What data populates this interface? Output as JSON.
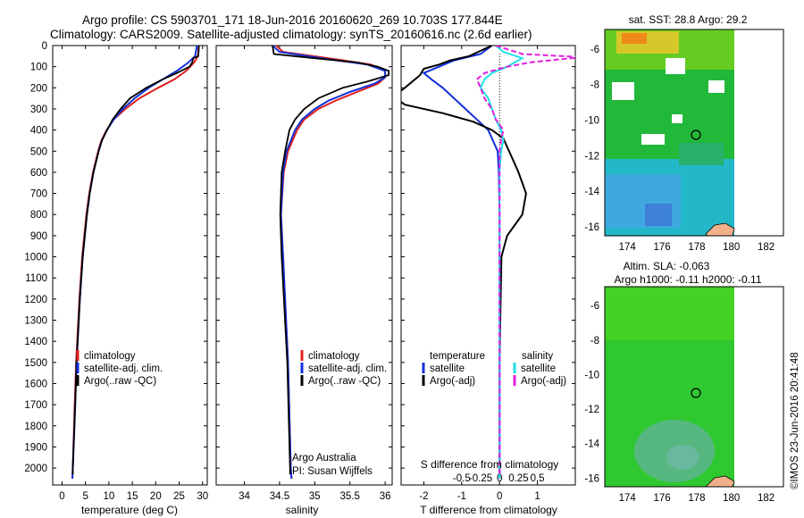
{
  "header": {
    "line1": "Argo profile: CS 5903701_171 18-Jun-2016 20160620_269 10.703S 177.844E",
    "line2": "Climatology: CARS2009. Satellite-adjusted climatology: synTS_20160616.nc (2.6d earlier)"
  },
  "colors": {
    "climatology": "#e0201e",
    "satellite": "#1030d8",
    "argo": "#000000",
    "sat_salinity": "#20e0e8",
    "argo_salinity_adj": "#e020e0"
  },
  "panel_temp": {
    "xlabel": "temperature (deg C)",
    "legend": [
      "climatology",
      "satellite-adj. clim.",
      "Argo(..raw -QC)"
    ]
  },
  "panel_sal": {
    "xlabel": "salinity",
    "legend": [
      "climatology",
      "satellite-adj. clim.",
      "Argo(..raw -QC)"
    ],
    "credit1": "Argo Australia",
    "credit2": "PI: Susan Wijffels"
  },
  "panel_diff": {
    "xlabel": "T difference from climatology",
    "top_axis_label": "S difference from climatology",
    "legend_temp_title": "temperature",
    "legend_sal_title": "salinity",
    "legend_temp": [
      "satellite",
      "Argo(-adj)"
    ],
    "legend_sal": [
      "satellite",
      "Argo(-adj)"
    ]
  },
  "map_sst": {
    "title": "sat. SST: 28.8 Argo: 29.2",
    "x_ticks": [
      "174",
      "176",
      "178",
      "180",
      "182"
    ],
    "y_ticks": [
      "-6",
      "-8",
      "-10",
      "-12",
      "-14",
      "-16"
    ]
  },
  "map_sla": {
    "title1": "Altim. SLA: -0.063",
    "title2": "Argo h1000: -0.11 h2000: -0.11",
    "x_ticks": [
      "174",
      "176",
      "178",
      "180",
      "182"
    ],
    "y_ticks": [
      "-6",
      "-8",
      "-10",
      "-12",
      "-14",
      "-16"
    ]
  },
  "credit_vertical": "©IMOS 23-Jun-2016 20:41:48",
  "chart_data": [
    {
      "type": "line",
      "xlabel": "temperature (deg C)",
      "xlim": [
        -2,
        31
      ],
      "x_ticks": [
        0,
        5,
        10,
        15,
        20,
        25,
        30
      ],
      "ylim": [
        2080,
        0
      ],
      "y_ticks": [
        0,
        100,
        200,
        300,
        400,
        500,
        600,
        700,
        800,
        900,
        1000,
        1100,
        1200,
        1300,
        1400,
        1500,
        1600,
        1700,
        1800,
        1900,
        2000
      ],
      "series": [
        {
          "name": "climatology",
          "depth": [
            0,
            50,
            80,
            120,
            160,
            200,
            250,
            300,
            350,
            400,
            450,
            500,
            600,
            700,
            800,
            1000,
            1200,
            1500,
            1700,
            2000,
            2050
          ],
          "values": [
            29.2,
            29.0,
            28.2,
            26.5,
            24.0,
            20.5,
            16.5,
            13.5,
            11.0,
            9.5,
            8.4,
            7.7,
            6.6,
            5.8,
            5.2,
            4.3,
            3.7,
            3.0,
            2.7,
            2.3,
            2.2
          ]
        },
        {
          "name": "satellite-adj. clim.",
          "depth": [
            0,
            50,
            80,
            120,
            160,
            200,
            250,
            300,
            350,
            400,
            450,
            500,
            600,
            700,
            800,
            1000,
            1200,
            1500,
            1700,
            2000,
            2050
          ],
          "values": [
            28.8,
            28.4,
            27.0,
            24.5,
            21.5,
            18.5,
            15.5,
            13.0,
            11.0,
            9.6,
            8.5,
            7.8,
            6.7,
            5.9,
            5.3,
            4.4,
            3.8,
            3.1,
            2.8,
            2.3,
            2.2
          ]
        },
        {
          "name": "Argo(..raw -QC)",
          "depth": [
            0,
            5,
            50,
            60,
            80,
            100,
            130,
            160,
            200,
            250,
            300,
            350,
            400,
            450,
            500,
            600,
            700,
            800,
            1000,
            1200,
            1500,
            1700,
            2000,
            2030
          ],
          "values": [
            29.2,
            29.2,
            29.1,
            28.0,
            27.8,
            27.2,
            24.5,
            21.5,
            18.0,
            14.5,
            12.5,
            10.8,
            9.6,
            8.5,
            7.8,
            6.7,
            5.9,
            5.3,
            4.4,
            3.8,
            3.1,
            2.8,
            2.3,
            2.3
          ]
        }
      ]
    },
    {
      "type": "line",
      "xlabel": "salinity",
      "xlim": [
        33.6,
        36.1
      ],
      "x_ticks": [
        34,
        34.5,
        35,
        35.5,
        36
      ],
      "ylim": [
        2080,
        0
      ],
      "series": [
        {
          "name": "climatology",
          "depth": [
            0,
            30,
            60,
            90,
            120,
            150,
            180,
            220,
            260,
            300,
            350,
            400,
            500,
            600,
            800,
            1000,
            1500,
            2000,
            2050
          ],
          "values": [
            34.45,
            34.55,
            35.2,
            35.8,
            36.0,
            36.0,
            35.9,
            35.6,
            35.3,
            35.05,
            34.85,
            34.75,
            34.62,
            34.56,
            34.52,
            34.55,
            34.62,
            34.66,
            34.67
          ]
        },
        {
          "name": "satellite-adj. clim.",
          "depth": [
            0,
            30,
            60,
            90,
            120,
            150,
            180,
            220,
            260,
            300,
            350,
            400,
            500,
            600,
            800,
            1000,
            1500,
            2000,
            2050
          ],
          "values": [
            34.4,
            34.5,
            35.1,
            35.75,
            36.0,
            36.0,
            35.85,
            35.5,
            35.2,
            35.0,
            34.82,
            34.72,
            34.6,
            34.55,
            34.52,
            34.55,
            34.62,
            34.66,
            34.67
          ]
        },
        {
          "name": "Argo(..raw -QC)",
          "depth": [
            0,
            40,
            60,
            80,
            100,
            120,
            140,
            170,
            200,
            250,
            300,
            350,
            400,
            500,
            600,
            800,
            1000,
            1500,
            2000,
            2030
          ],
          "values": [
            34.4,
            34.42,
            35.0,
            35.6,
            35.9,
            36.05,
            36.05,
            35.75,
            35.4,
            35.05,
            34.85,
            34.72,
            34.64,
            34.58,
            34.53,
            34.51,
            34.53,
            34.61,
            34.65,
            34.65
          ]
        }
      ]
    },
    {
      "type": "line",
      "xlabel": "T difference from climatology",
      "xlim": [
        -2.6,
        2.0
      ],
      "x_ticks": [
        -2,
        -1,
        0,
        1
      ],
      "top_axis_label": "S difference from climatology",
      "top_ticks": [
        "-0.5",
        "-0.25",
        "0",
        "0.25",
        "0.5"
      ],
      "ylim": [
        2080,
        0
      ],
      "series": [
        {
          "name": "temperature satellite",
          "depth": [
            0,
            40,
            70,
            100,
            130,
            160,
            200,
            250,
            300,
            350,
            400,
            500,
            600,
            800,
            1000,
            1500,
            2000,
            2050
          ],
          "values": [
            -0.2,
            -0.5,
            -1.2,
            -1.6,
            -2.0,
            -1.8,
            -1.5,
            -1.2,
            -0.9,
            -0.6,
            -0.3,
            -0.05,
            -0.02,
            0,
            0,
            0,
            0,
            0
          ]
        },
        {
          "name": "temperature Argo(-adj)",
          "depth": [
            0,
            50,
            70,
            90,
            110,
            140,
            170,
            200,
            240,
            280,
            320,
            360,
            400,
            440,
            480,
            540,
            600,
            700,
            800,
            900,
            1000,
            1500,
            2000,
            2030
          ],
          "values": [
            -0.2,
            -0.8,
            -1.3,
            -1.6,
            -2.0,
            -2.1,
            -2.3,
            -2.5,
            -2.8,
            -2.5,
            -1.5,
            -0.7,
            -0.2,
            0.1,
            0.2,
            0.35,
            0.5,
            0.7,
            0.6,
            0.2,
            0.05,
            0,
            0,
            0
          ]
        },
        {
          "name": "salinity satellite",
          "depth": [
            0,
            30,
            60,
            80,
            100,
            130,
            160,
            200,
            250,
            300,
            350,
            400,
            450,
            500,
            600,
            800,
            1000,
            1500,
            2000,
            2050
          ],
          "values": [
            -0.05,
            0.05,
            0.3,
            0.2,
            0.1,
            -0.1,
            -0.2,
            -0.25,
            -0.15,
            -0.1,
            -0.05,
            0.02,
            0.05,
            0.02,
            0.0,
            0.0,
            0.0,
            0.0,
            0.0,
            0.0
          ]
        },
        {
          "name": "salinity Argo(-adj)",
          "depth": [
            0,
            40,
            55,
            65,
            80,
            100,
            130,
            160,
            200,
            250,
            300,
            350,
            400,
            450,
            500,
            600,
            800,
            1000,
            1500,
            2000,
            2030
          ],
          "values": [
            -0.05,
            0.3,
            1.1,
            0.8,
            0.4,
            0.1,
            -0.2,
            -0.3,
            -0.25,
            -0.2,
            -0.1,
            -0.05,
            0.05,
            0.02,
            0.0,
            0.0,
            0.0,
            0.0,
            0.0,
            0.0,
            0.0
          ]
        }
      ]
    },
    {
      "type": "heatmap",
      "title": "sat. SST: 28.8 Argo: 29.2",
      "xlim": [
        172.7,
        183
      ],
      "ylim": [
        -16.5,
        -4.9
      ],
      "profile_location": {
        "lon": 177.844,
        "lat": -10.703
      }
    },
    {
      "type": "heatmap",
      "title": "Altim. SLA: -0.063",
      "subtitle": "Argo h1000: -0.11 h2000: -0.11",
      "xlim": [
        172.7,
        183
      ],
      "ylim": [
        -16.5,
        -4.9
      ],
      "profile_location": {
        "lon": 177.844,
        "lat": -10.703
      }
    }
  ]
}
